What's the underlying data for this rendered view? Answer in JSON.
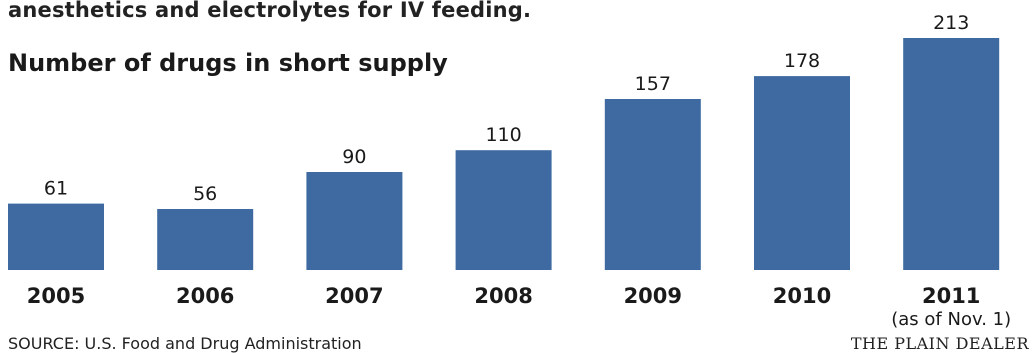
{
  "intro_text": "anesthetics and electrolytes for IV feeding.",
  "source": "SOURCE: U.S. Food and Drug Administration",
  "credit": "THE PLAIN DEALER",
  "colors": {
    "bar": "#3e6aa1",
    "text": "#1a1a1a"
  },
  "chart_data": {
    "type": "bar",
    "title": "Number of drugs in short supply",
    "categories": [
      "2005",
      "2006",
      "2007",
      "2008",
      "2009",
      "2010",
      "2011"
    ],
    "category_notes": [
      "",
      "",
      "",
      "",
      "",
      "",
      "(as of Nov. 1)"
    ],
    "values": [
      61,
      56,
      90,
      110,
      157,
      178,
      213
    ],
    "data_labels": [
      "61",
      "56",
      "90",
      "110",
      "157",
      "178",
      "213"
    ],
    "xlabel": "",
    "ylabel": "",
    "ylim": [
      0,
      213
    ],
    "grid": false,
    "legend": "none"
  }
}
